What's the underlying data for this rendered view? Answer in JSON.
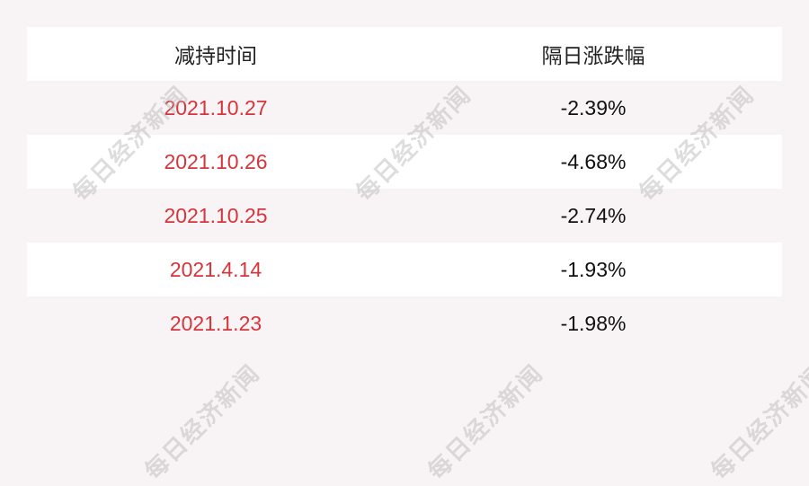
{
  "header": {
    "col1": "减持时间",
    "col2": "隔日涨跌幅"
  },
  "rows": [
    {
      "date": "2021.10.27",
      "change": "-2.39%"
    },
    {
      "date": "2021.10.26",
      "change": "-4.68%"
    },
    {
      "date": "2021.10.25",
      "change": "-2.74%"
    },
    {
      "date": "2021.4.14",
      "change": "-1.93%"
    },
    {
      "date": "2021.1.23",
      "change": "-1.98%"
    }
  ],
  "watermark": "每日经济新闻",
  "colors": {
    "date_text": "#d7343c",
    "background": "#f8f4f5"
  }
}
